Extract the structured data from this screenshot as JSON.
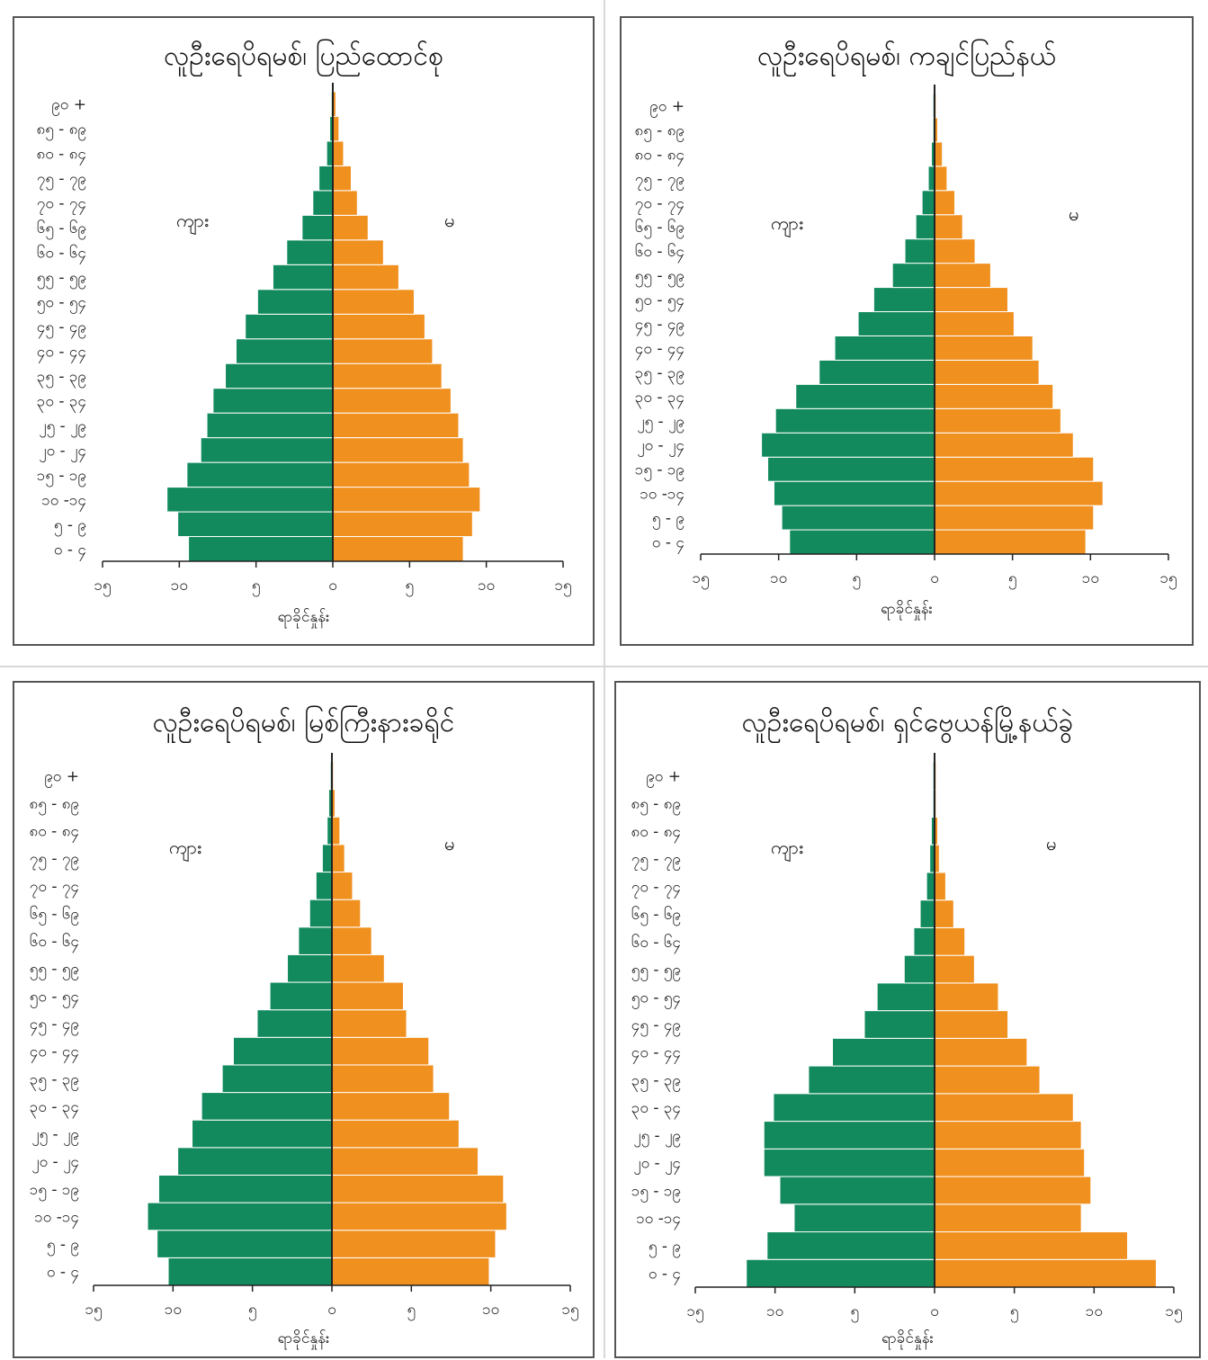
{
  "shared": {
    "age_groups": [
      "၀ - ၄",
      "၅ - ၉",
      "၁၀ -၁၄",
      "၁၅ - ၁၉",
      "၂၀ - ၂၄",
      "၂၅ - ၂၉",
      "၃၀ - ၃၄",
      "၃၅ - ၃၉",
      "၄၀ - ၄၄",
      "၄၅ - ၄၉",
      "၅၀ - ၅၄",
      "၅၅ - ၅၉",
      "၆၀ - ၆၄",
      "၆၅ - ၆၉",
      "၇၀ - ၇၄",
      "၇၅ - ၇၉",
      "၈၀ - ၈၄",
      "၈၅ - ၈၉",
      "၉၀ +"
    ],
    "x_ticks": [
      "၁၅",
      "၁၀",
      "၅",
      "၀",
      "၅",
      "၁၀",
      "၁၅"
    ],
    "colors": {
      "male": "#128a5e",
      "female": "#f0901f",
      "axis": "#222222"
    }
  },
  "chart_data": [
    {
      "type": "bar",
      "title": "လူဦးရေပိရမစ်၊ ပြည်ထောင်စု",
      "xlabel": "ရာခိုင်နှုန်း",
      "male_label": "ကျား",
      "female_label": "မ",
      "xlim": [
        -15,
        15
      ],
      "male": [
        9.4,
        10.1,
        10.8,
        9.5,
        8.6,
        8.2,
        7.8,
        7.0,
        6.3,
        5.7,
        4.9,
        3.9,
        3.0,
        2.0,
        1.3,
        0.9,
        0.4,
        0.2,
        0.1
      ],
      "female": [
        8.5,
        9.1,
        9.6,
        8.9,
        8.5,
        8.2,
        7.7,
        7.1,
        6.5,
        6.0,
        5.3,
        4.3,
        3.3,
        2.3,
        1.6,
        1.2,
        0.7,
        0.4,
        0.2
      ]
    },
    {
      "type": "bar",
      "title": "လူဦးရေပိရမစ်၊ ကချင်ပြည်နယ်",
      "xlabel": "ရာခိုင်နှုန်း",
      "male_label": "ကျား",
      "female_label": "မ",
      "xlim": [
        -15,
        15
      ],
      "male": [
        9.3,
        9.8,
        10.3,
        10.7,
        11.1,
        10.2,
        8.9,
        7.4,
        6.4,
        4.9,
        3.9,
        2.7,
        1.9,
        1.2,
        0.8,
        0.4,
        0.2,
        0.1,
        0.1
      ],
      "female": [
        9.7,
        10.2,
        10.8,
        10.2,
        8.9,
        8.1,
        7.6,
        6.7,
        6.3,
        5.1,
        4.7,
        3.6,
        2.6,
        1.8,
        1.3,
        0.8,
        0.5,
        0.2,
        0.1
      ]
    },
    {
      "type": "bar",
      "title": "လူဦးရေပိရမစ်၊ မြစ်ကြီးနားခရိုင်",
      "xlabel": "ရာခိုင်နှုန်း",
      "male_label": "ကျား",
      "female_label": "မ",
      "xlim": [
        -15,
        15
      ],
      "male": [
        10.3,
        11.0,
        11.6,
        10.9,
        9.7,
        8.8,
        8.2,
        6.9,
        6.2,
        4.7,
        3.9,
        2.8,
        2.1,
        1.4,
        1.0,
        0.6,
        0.3,
        0.2,
        0.1
      ],
      "female": [
        9.9,
        10.3,
        11.0,
        10.8,
        9.2,
        8.0,
        7.4,
        6.4,
        6.1,
        4.7,
        4.5,
        3.3,
        2.5,
        1.8,
        1.3,
        0.8,
        0.5,
        0.2,
        0.1
      ]
    },
    {
      "type": "bar",
      "title": "လူဦးရေပိရမစ်၊ ရှင်ဗွေယန်မြို့နယ်ခွဲ",
      "xlabel": "ရာခိုင်နှုန်း",
      "male_label": "ကျား",
      "female_label": "မ",
      "xlim": [
        -15,
        15
      ],
      "male": [
        11.8,
        10.5,
        8.8,
        9.7,
        10.7,
        10.7,
        10.1,
        7.9,
        6.4,
        4.4,
        3.6,
        1.9,
        1.3,
        0.9,
        0.5,
        0.3,
        0.2,
        0.1,
        0.1
      ],
      "female": [
        13.9,
        12.1,
        9.2,
        9.8,
        9.4,
        9.2,
        8.7,
        6.6,
        5.8,
        4.6,
        4.0,
        2.5,
        1.9,
        1.2,
        0.7,
        0.3,
        0.2,
        0.1,
        0.1
      ]
    }
  ]
}
